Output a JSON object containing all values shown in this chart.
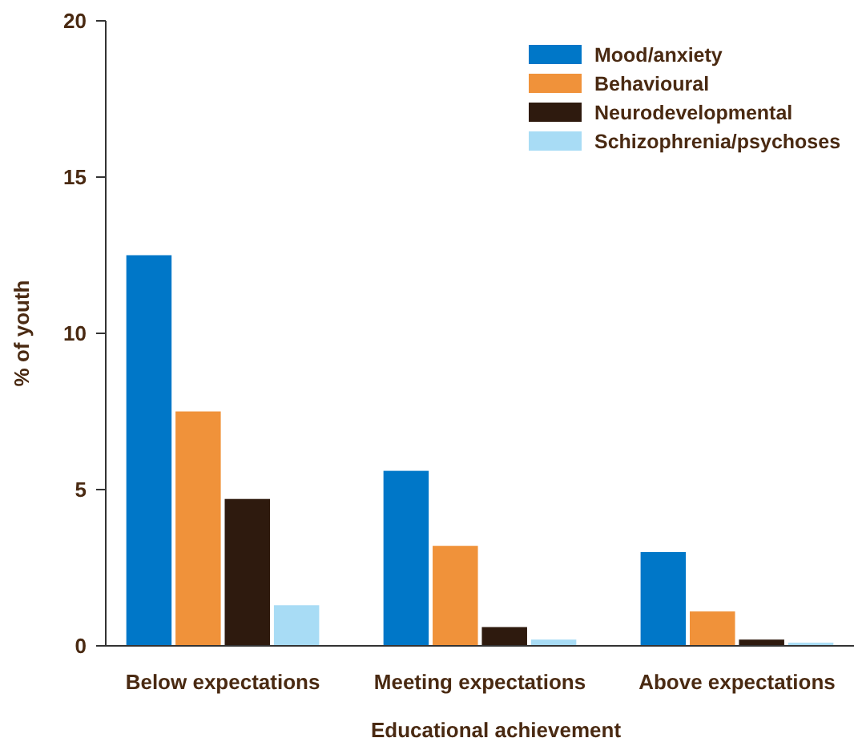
{
  "chart_data": {
    "type": "bar",
    "xlabel": "Educational achievement",
    "ylabel": "% of youth",
    "categories": [
      "Below expectations",
      "Meeting expectations",
      "Above expectations"
    ],
    "series": [
      {
        "name": "Mood/anxiety",
        "color": "#0077c8",
        "values": [
          12.5,
          5.6,
          3.0
        ]
      },
      {
        "name": "Behavioural",
        "color": "#f0923a",
        "values": [
          7.5,
          3.2,
          1.1
        ]
      },
      {
        "name": "Neurodevelopmental",
        "color": "#2e1a0e",
        "values": [
          4.7,
          0.6,
          0.2
        ]
      },
      {
        "name": "Schizophrenia/psychoses",
        "color": "#a8dcf5",
        "values": [
          1.3,
          0.2,
          0.1
        ]
      }
    ],
    "ylim": [
      0,
      20
    ],
    "yticks": [
      0,
      5,
      10,
      15,
      20
    ],
    "grid": false,
    "legend": "top right"
  }
}
